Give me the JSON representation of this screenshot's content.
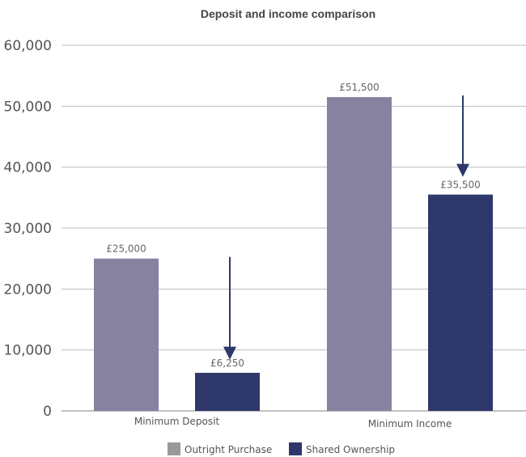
{
  "chart_data": {
    "type": "bar",
    "title": "Deposit and income comparison",
    "categories": [
      "Minimum Deposit",
      "Minimum Income"
    ],
    "series": [
      {
        "name": "Outright Purchase",
        "values": [
          25000,
          51500
        ],
        "labels": [
          "£25,000",
          "£51,500"
        ],
        "color": "#8682a0"
      },
      {
        "name": "Shared Ownership",
        "values": [
          6250,
          35500
        ],
        "labels": [
          "£6,250",
          "£35,500"
        ],
        "color": "#2e386b"
      }
    ],
    "yticks": [
      "0",
      "10,000",
      "20,000",
      "30,000",
      "40,000",
      "50,000",
      "60,000"
    ],
    "ylim": [
      0,
      60000
    ],
    "grid": true,
    "legend_position": "bottom",
    "arrow_color": "#2e386b",
    "annotations": [
      {
        "type": "arrow",
        "category": "Minimum Deposit",
        "from_value": 25000,
        "to_value": 10000
      },
      {
        "type": "arrow",
        "category": "Minimum Income",
        "from_value": 51500,
        "to_value": 40000
      }
    ]
  }
}
